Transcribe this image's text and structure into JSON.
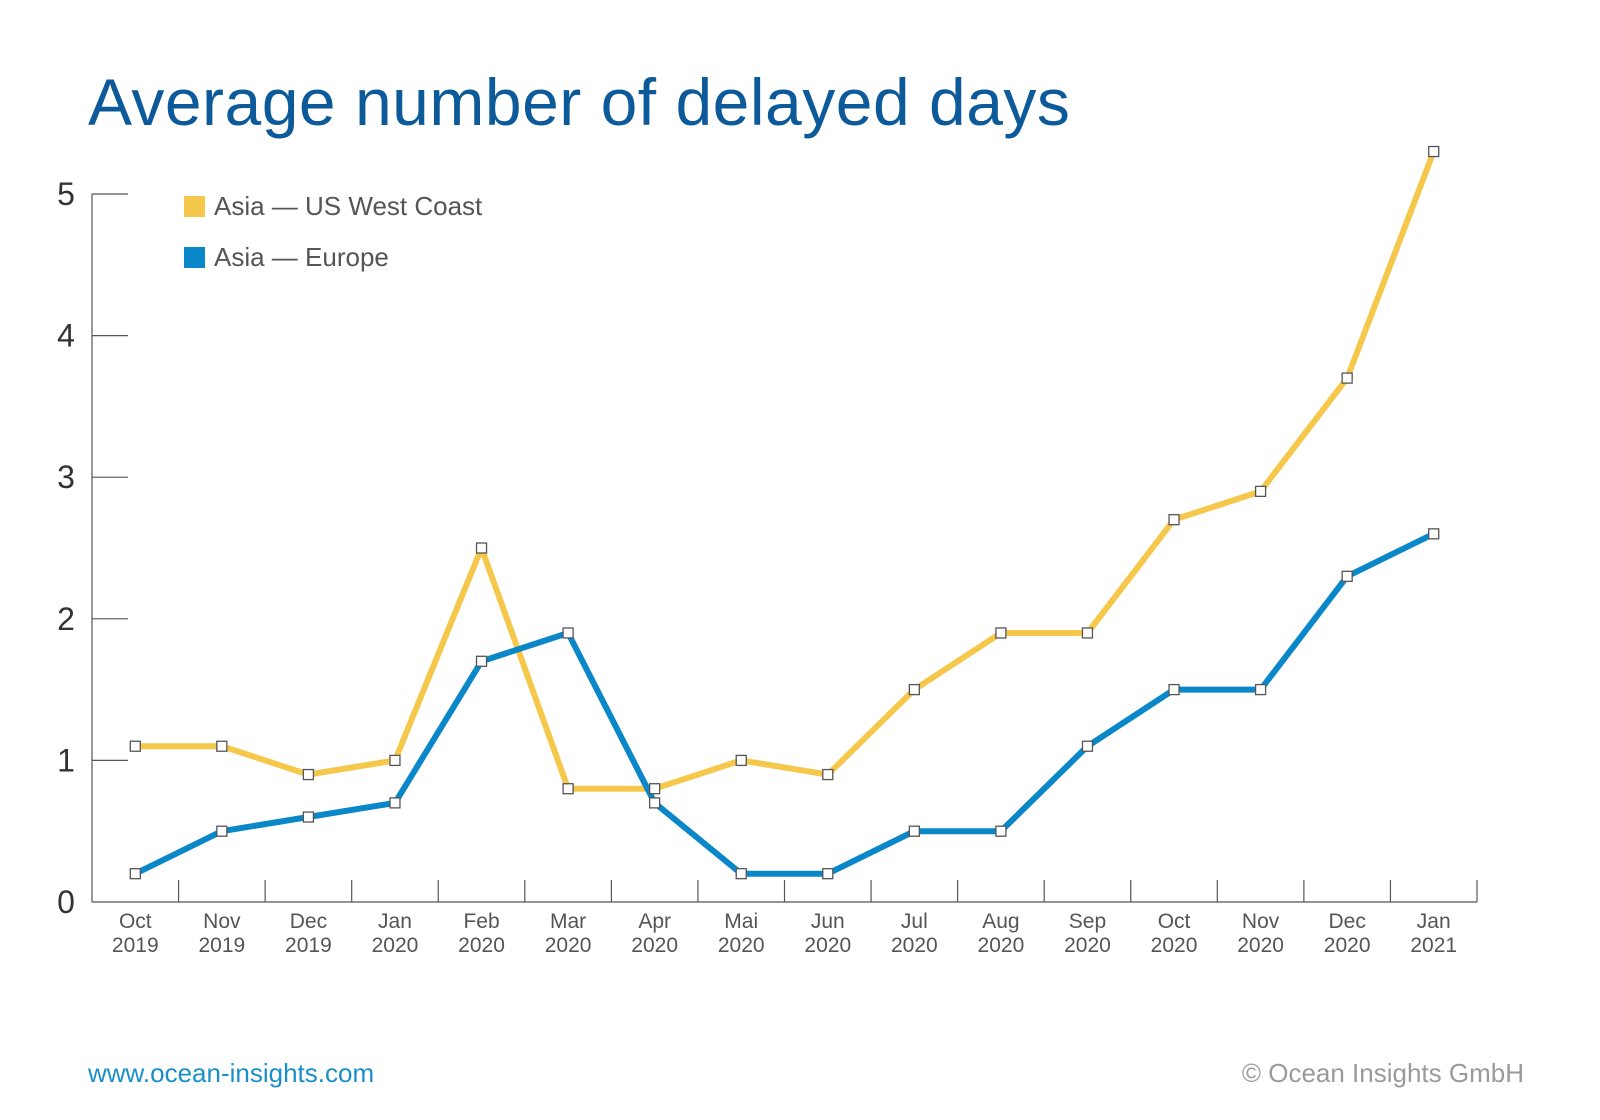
{
  "title": "Average number of delayed days",
  "footer": {
    "website": "www.ocean-insights.com",
    "copyright": "© Ocean Insights GmbH"
  },
  "chart_data": {
    "type": "line",
    "title": "Average number of delayed days",
    "xlabel": "",
    "ylabel": "",
    "categories": [
      [
        "Oct",
        "2019"
      ],
      [
        "Nov",
        "2019"
      ],
      [
        "Dec",
        "2019"
      ],
      [
        "Jan",
        "2020"
      ],
      [
        "Feb",
        "2020"
      ],
      [
        "Mar",
        "2020"
      ],
      [
        "Apr",
        "2020"
      ],
      [
        "Mai",
        "2020"
      ],
      [
        "Jun",
        "2020"
      ],
      [
        "Jul",
        "2020"
      ],
      [
        "Aug",
        "2020"
      ],
      [
        "Sep",
        "2020"
      ],
      [
        "Oct",
        "2020"
      ],
      [
        "Nov",
        "2020"
      ],
      [
        "Dec",
        "2020"
      ],
      [
        "Jan",
        "2021"
      ]
    ],
    "ylim": [
      0,
      5
    ],
    "yticks": [
      "0",
      "1",
      "2",
      "3",
      "4",
      "5"
    ],
    "grid": false,
    "legend_position": "top-left",
    "series": [
      {
        "name": "Asia — US West Coast",
        "color": "#f5c84c",
        "values": [
          1.1,
          1.1,
          0.9,
          1.0,
          2.5,
          0.8,
          0.8,
          1.0,
          0.9,
          1.5,
          1.9,
          1.9,
          2.7,
          2.9,
          3.7,
          5.3
        ]
      },
      {
        "name": "Asia — Europe",
        "color": "#0a87c9",
        "values": [
          0.2,
          0.5,
          0.6,
          0.7,
          1.7,
          1.9,
          0.7,
          0.2,
          0.2,
          0.5,
          0.5,
          1.1,
          1.5,
          1.5,
          2.3,
          2.6
        ]
      }
    ]
  }
}
